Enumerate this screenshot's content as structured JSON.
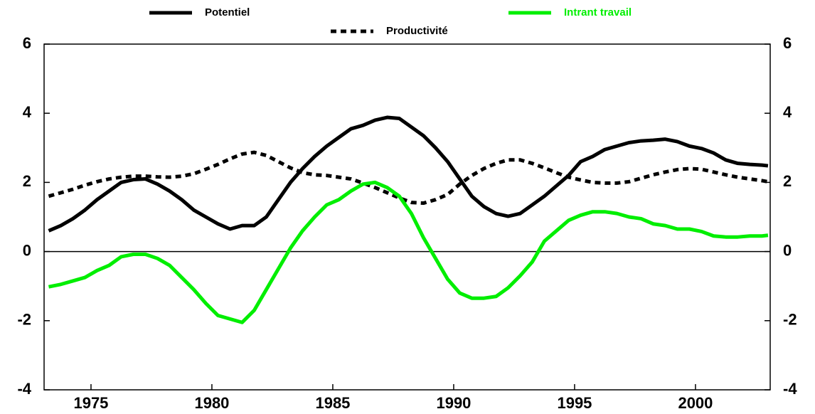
{
  "chart_data": {
    "type": "line",
    "x": [
      1973.25,
      1973.75,
      1974.25,
      1974.75,
      1975.25,
      1975.75,
      1976.25,
      1976.75,
      1977.25,
      1977.75,
      1978.25,
      1978.75,
      1979.25,
      1979.75,
      1980.25,
      1980.75,
      1981.25,
      1981.75,
      1982.25,
      1982.75,
      1983.25,
      1983.75,
      1984.25,
      1984.75,
      1985.25,
      1985.75,
      1986.25,
      1986.75,
      1987.25,
      1987.75,
      1988.25,
      1988.75,
      1989.25,
      1989.75,
      1990.25,
      1990.75,
      1991.25,
      1991.75,
      1992.25,
      1992.75,
      1993.25,
      1993.75,
      1994.25,
      1994.75,
      1995.25,
      1995.75,
      1996.25,
      1996.75,
      1997.25,
      1997.75,
      1998.25,
      1998.75,
      1999.25,
      1999.75,
      2000.25,
      2000.75,
      2001.25,
      2001.75,
      2002.25,
      2002.75,
      2003.0
    ],
    "series": [
      {
        "name": "Potentiel",
        "color": "#000000",
        "style": "solid",
        "values": [
          0.6,
          0.75,
          0.95,
          1.2,
          1.5,
          1.75,
          2.0,
          2.08,
          2.1,
          1.95,
          1.75,
          1.5,
          1.2,
          1.0,
          0.8,
          0.65,
          0.75,
          0.75,
          1.0,
          1.5,
          2.0,
          2.4,
          2.75,
          3.05,
          3.3,
          3.55,
          3.65,
          3.8,
          3.88,
          3.85,
          3.6,
          3.35,
          3.0,
          2.6,
          2.1,
          1.6,
          1.3,
          1.1,
          1.02,
          1.1,
          1.35,
          1.6,
          1.9,
          2.2,
          2.6,
          2.75,
          2.95,
          3.05,
          3.15,
          3.2,
          3.22,
          3.25,
          3.18,
          3.05,
          2.98,
          2.85,
          2.65,
          2.55,
          2.52,
          2.5,
          2.48
        ]
      },
      {
        "name": "Productivité",
        "color": "#000000",
        "style": "dotted",
        "values": [
          1.6,
          1.7,
          1.8,
          1.92,
          2.02,
          2.1,
          2.15,
          2.18,
          2.18,
          2.16,
          2.15,
          2.18,
          2.25,
          2.38,
          2.52,
          2.68,
          2.82,
          2.87,
          2.78,
          2.6,
          2.42,
          2.28,
          2.22,
          2.2,
          2.15,
          2.1,
          1.98,
          1.85,
          1.7,
          1.55,
          1.42,
          1.4,
          1.5,
          1.65,
          1.95,
          2.2,
          2.4,
          2.55,
          2.65,
          2.65,
          2.55,
          2.42,
          2.28,
          2.15,
          2.07,
          2.0,
          1.98,
          1.98,
          2.02,
          2.12,
          2.22,
          2.3,
          2.37,
          2.4,
          2.38,
          2.3,
          2.22,
          2.15,
          2.1,
          2.05,
          2.02
        ]
      },
      {
        "name": "Intrant travail",
        "color": "#00ee00",
        "style": "solid",
        "values": [
          -1.02,
          -0.95,
          -0.85,
          -0.75,
          -0.55,
          -0.4,
          -0.15,
          -0.08,
          -0.08,
          -0.2,
          -0.4,
          -0.75,
          -1.1,
          -1.5,
          -1.85,
          -1.95,
          -2.05,
          -1.7,
          -1.1,
          -0.5,
          0.1,
          0.6,
          1.0,
          1.35,
          1.5,
          1.75,
          1.95,
          2.0,
          1.85,
          1.6,
          1.1,
          0.4,
          -0.2,
          -0.8,
          -1.2,
          -1.35,
          -1.35,
          -1.3,
          -1.05,
          -0.7,
          -0.3,
          0.3,
          0.6,
          0.9,
          1.05,
          1.15,
          1.15,
          1.1,
          1.0,
          0.95,
          0.8,
          0.75,
          0.65,
          0.65,
          0.58,
          0.45,
          0.42,
          0.42,
          0.45,
          0.45,
          0.47
        ]
      }
    ],
    "xlim": [
      1973.06,
      2003.09
    ],
    "xticks": [
      1975,
      1980,
      1985,
      1990,
      1995,
      2000
    ],
    "ylim": [
      -4,
      6
    ],
    "yticks": [
      -4,
      -2,
      0,
      2,
      4,
      6
    ],
    "y2lim": [
      -4,
      6
    ],
    "y2ticks": [
      -4,
      -2,
      0,
      2,
      4,
      6
    ],
    "zero_line": true
  }
}
